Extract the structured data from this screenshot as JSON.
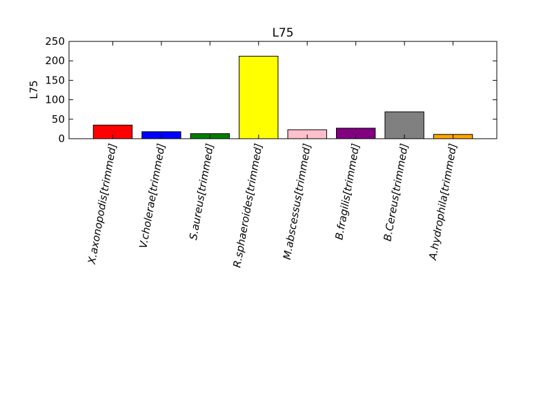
{
  "chart_data": {
    "type": "bar",
    "title": "L75",
    "xlabel": "",
    "ylabel": "L75",
    "ylim": [
      0,
      250
    ],
    "yticks": [
      0,
      50,
      100,
      150,
      200,
      250
    ],
    "grid": false,
    "legend": "none",
    "categories": [
      "X.axonopodis[trimmed]",
      "V.cholerae[trimmed]",
      "S.aureus[trimmed]",
      "R.sphaeroides[trimmed]",
      "M.abscessus[trimmed]",
      "B.fragilis[trimmed]",
      "B.Cereus[trimmed]",
      "A.hydrophila[trimmed]"
    ],
    "values": [
      35,
      18,
      13,
      212,
      23,
      27,
      69,
      11
    ],
    "colors": [
      "#ff0000",
      "#0000ff",
      "#007f00",
      "#ffff00",
      "#ffc0cb",
      "#800080",
      "#808080",
      "#ffa500"
    ]
  }
}
